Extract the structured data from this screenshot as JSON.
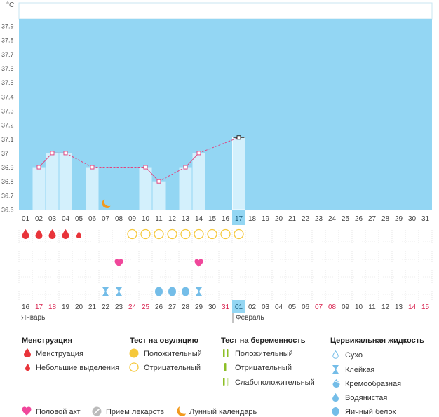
{
  "unit": "°C",
  "chart_data": {
    "type": "line",
    "y_ticks": [
      "37.9",
      "37.8",
      "37.7",
      "37.6",
      "37.5",
      "37.4",
      "37.3",
      "37.2",
      "37.1",
      "37",
      "36.9",
      "36.8",
      "36.7",
      "36.6"
    ],
    "ylim": [
      36.6,
      37.95
    ],
    "days": [
      "01",
      "02",
      "03",
      "04",
      "05",
      "06",
      "07",
      "08",
      "09",
      "10",
      "11",
      "12",
      "13",
      "14",
      "15",
      "16",
      "17",
      "18",
      "19",
      "20",
      "21",
      "22",
      "23",
      "24",
      "25",
      "26",
      "27",
      "28",
      "29",
      "30",
      "31"
    ],
    "selected_day": "17",
    "temperatures": [
      {
        "day": "02",
        "value": 36.9
      },
      {
        "day": "03",
        "value": 37.0
      },
      {
        "day": "04",
        "value": 37.0
      },
      {
        "day": "06",
        "value": 36.9
      },
      {
        "day": "10",
        "value": 36.9
      },
      {
        "day": "11",
        "value": 36.8
      },
      {
        "day": "13",
        "value": 36.9
      },
      {
        "day": "14",
        "value": 37.0
      },
      {
        "day": "17",
        "value": 37.11
      }
    ],
    "cycle_days": [
      "16",
      "17",
      "18",
      "19",
      "20",
      "21",
      "22",
      "23",
      "24",
      "25",
      "26",
      "27",
      "28",
      "29",
      "30",
      "31",
      "01",
      "02",
      "03",
      "04",
      "05",
      "06",
      "07",
      "08",
      "09",
      "10",
      "11",
      "12",
      "13",
      "14",
      "15"
    ],
    "cycle_red_days": [
      "17",
      "18",
      "24",
      "25",
      "31",
      "07",
      "08",
      "14",
      "15"
    ],
    "month_jan": "Январь",
    "month_feb": "Февраль",
    "markers": {
      "menstruation": [
        "01",
        "02",
        "03",
        "04"
      ],
      "light_bleeding": [
        "05"
      ],
      "ovulation_negative": [
        "09",
        "10",
        "11",
        "12",
        "13",
        "14",
        "15",
        "16",
        "17"
      ],
      "intercourse": [
        "08",
        "14"
      ],
      "sticky": [
        "07",
        "08",
        "14"
      ],
      "eggwhite": [
        "11",
        "12",
        "13"
      ],
      "lunar": [
        "07"
      ]
    },
    "colors": {
      "background": "#93d6f3",
      "bar": "#d3f0fc",
      "line": "#e0457f",
      "selected": "#93d6f3",
      "menstruation": "#e8343a",
      "heart": "#f0479b",
      "moon": "#f29a1e",
      "ovulation": "#f5c83b",
      "cervical": "#74bde8",
      "pregnancy": "#8cbf26",
      "weekend": "#d8234f"
    }
  },
  "legend": {
    "menstruation": {
      "title": "Менструация",
      "items": [
        "Менструация",
        "Небольшие выделения"
      ]
    },
    "ovulation": {
      "title": "Тест на овуляцию",
      "items": [
        "Положительный",
        "Отрицательный"
      ]
    },
    "pregnancy": {
      "title": "Тест на беременность",
      "items": [
        "Положительный",
        "Отрицательный",
        "Слабоположительный"
      ]
    },
    "cervical": {
      "title": "Цервикальная жидкость",
      "items": [
        "Сухо",
        "Клейкая",
        "Кремообразная",
        "Водянистая",
        "Яичный белок"
      ]
    },
    "bottom": [
      "Половой акт",
      "Прием лекарств",
      "Лунный календарь"
    ]
  }
}
